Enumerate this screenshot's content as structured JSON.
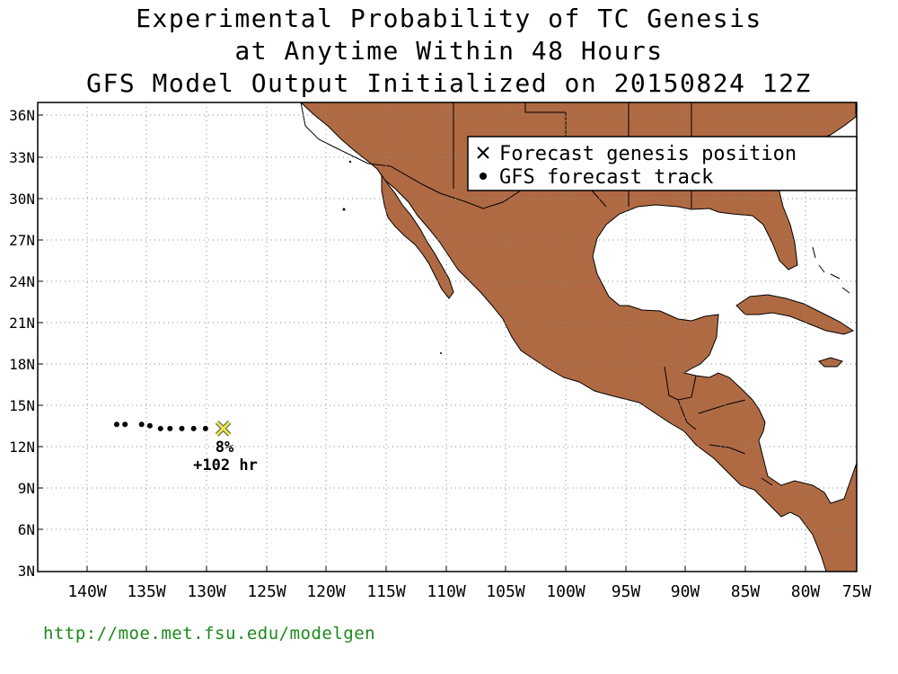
{
  "titles": {
    "line1": "Experimental Probability of TC Genesis",
    "line2": "at Anytime Within 48 Hours",
    "line3": "GFS Model Output Initialized on 20150824 12Z"
  },
  "legend": {
    "genesis": "Forecast genesis position",
    "track": "GFS forecast track"
  },
  "lat_labels": [
    "36N",
    "33N",
    "30N",
    "27N",
    "24N",
    "21N",
    "18N",
    "15N",
    "12N",
    "9N",
    "6N",
    "3N"
  ],
  "lon_labels": [
    "140W",
    "135W",
    "130W",
    "125W",
    "120W",
    "115W",
    "110W",
    "105W",
    "100W",
    "95W",
    "90W",
    "85W",
    "80W",
    "75W"
  ],
  "genesis": {
    "probability": "8%",
    "lead_time": "+102 hr",
    "lon": -128.5,
    "lat": 13.3
  },
  "track_points": [
    {
      "lon": -137.5,
      "lat": 13.6
    },
    {
      "lon": -136.8,
      "lat": 13.6
    },
    {
      "lon": -135.4,
      "lat": 13.6
    },
    {
      "lon": -134.7,
      "lat": 13.5
    },
    {
      "lon": -133.8,
      "lat": 13.3
    },
    {
      "lon": -133.0,
      "lat": 13.3
    },
    {
      "lon": -132.0,
      "lat": 13.3
    },
    {
      "lon": -131.0,
      "lat": 13.3
    },
    {
      "lon": -130.0,
      "lat": 13.3
    }
  ],
  "colors": {
    "land": "#b06a43",
    "genesis_marker": "#e8e84a",
    "footer": "#1a8a1a"
  },
  "footer": "http://moe.met.fsu.edu/modelgen"
}
